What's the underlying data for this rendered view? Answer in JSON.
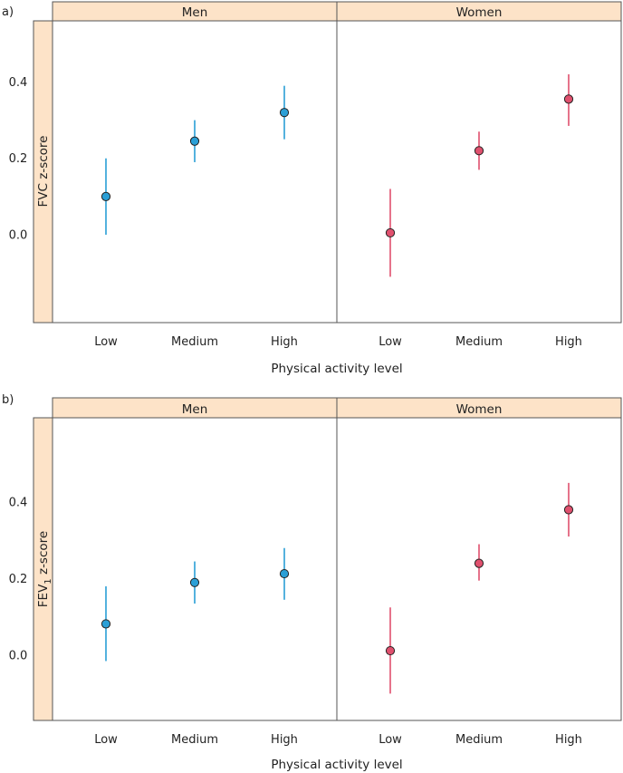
{
  "colors": {
    "strip_fill": "#fde3c8",
    "men": "#2a9fd6",
    "women": "#e0506e",
    "frame": "#555555"
  },
  "chart_data": [
    {
      "type": "scatter",
      "panel_label": "a)",
      "ylabel": "FVC z-score",
      "ylabel_sub": "",
      "ylabel_rest": "",
      "xlabel": "Physical activity level",
      "categories": [
        "Low",
        "Medium",
        "High"
      ],
      "yticks": [
        0.0,
        0.2,
        0.4
      ],
      "ytick_labels": [
        "0.0",
        "0.2",
        "0.4"
      ],
      "ylim": [
        -0.23,
        0.56
      ],
      "grid": false,
      "series": [
        {
          "name": "Men",
          "color_key": "men",
          "values": [
            0.1,
            0.245,
            0.32
          ],
          "lower": [
            0.0,
            0.19,
            0.25
          ],
          "upper": [
            0.2,
            0.3,
            0.39
          ]
        },
        {
          "name": "Women",
          "color_key": "women",
          "values": [
            0.005,
            0.22,
            0.355
          ],
          "lower": [
            -0.11,
            0.17,
            0.285
          ],
          "upper": [
            0.12,
            0.27,
            0.42
          ]
        }
      ]
    },
    {
      "type": "scatter",
      "panel_label": "b)",
      "ylabel": "FEV",
      "ylabel_sub": "1",
      "ylabel_rest": " z-score",
      "xlabel": "Physical activity level",
      "categories": [
        "Low",
        "Medium",
        "High"
      ],
      "yticks": [
        0.0,
        0.2,
        0.4
      ],
      "ytick_labels": [
        "0.0",
        "0.2",
        "0.4"
      ],
      "ylim": [
        -0.17,
        0.62
      ],
      "grid": false,
      "series": [
        {
          "name": "Men",
          "color_key": "men",
          "values": [
            0.082,
            0.19,
            0.213
          ],
          "lower": [
            -0.015,
            0.135,
            0.145
          ],
          "upper": [
            0.18,
            0.245,
            0.28
          ]
        },
        {
          "name": "Women",
          "color_key": "women",
          "values": [
            0.012,
            0.24,
            0.38
          ],
          "lower": [
            -0.1,
            0.195,
            0.31
          ],
          "upper": [
            0.125,
            0.29,
            0.45
          ]
        }
      ]
    }
  ]
}
